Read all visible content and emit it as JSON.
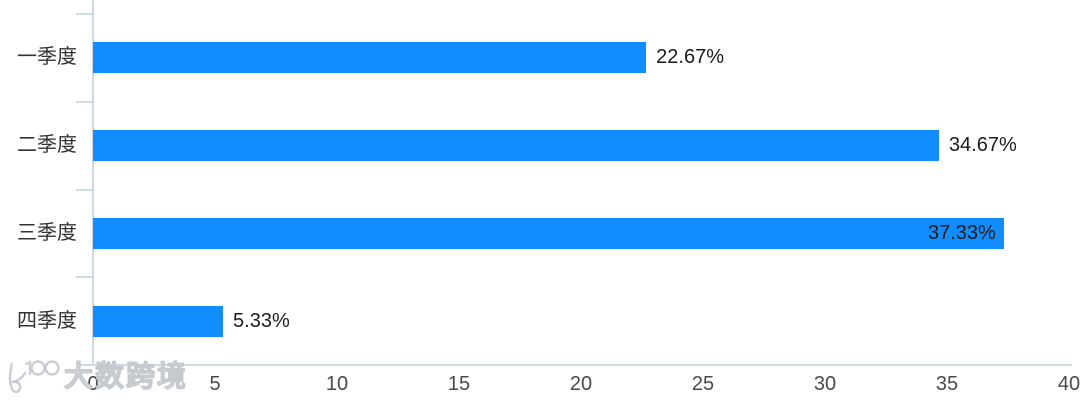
{
  "chart_data": {
    "type": "bar",
    "orientation": "horizontal",
    "title": "",
    "xlabel": "",
    "ylabel": "",
    "categories": [
      "一季度",
      "二季度",
      "三季度",
      "四季度"
    ],
    "values": [
      22.67,
      34.67,
      37.33,
      5.33
    ],
    "value_labels": [
      "22.67%",
      "34.67%",
      "37.33%",
      "5.33%"
    ],
    "x_ticks": [
      "0",
      "5",
      "10",
      "15",
      "20",
      "25",
      "30",
      "35",
      "40"
    ],
    "x_tick_values": [
      0,
      5,
      10,
      15,
      20,
      25,
      30,
      35,
      40
    ],
    "xlim": [
      0,
      40
    ],
    "grid": false,
    "legend": false,
    "bar_color": "#118dff"
  },
  "watermark": {
    "logo": "K100",
    "text": "大数跨境"
  },
  "colors": {
    "bar": "#118dff",
    "axis_line": "#cdd9e6",
    "tick_text": "#4a4a4a",
    "category_text": "#333333",
    "value_text": "#1c1c1c",
    "background": "#ffffff"
  }
}
